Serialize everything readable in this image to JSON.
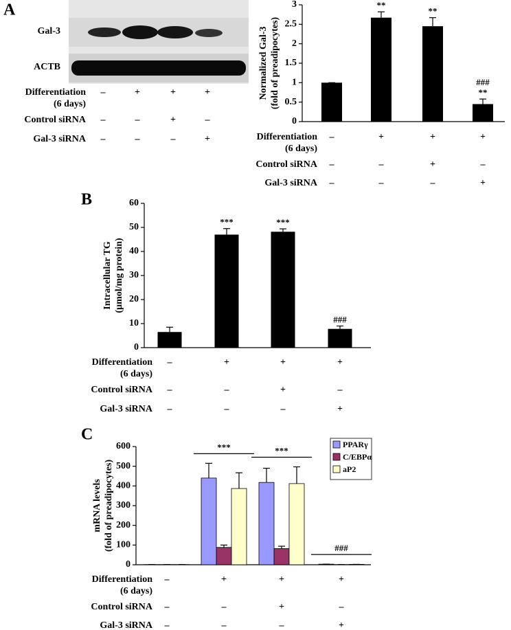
{
  "blot": {
    "panel": "A",
    "rows": [
      "Gal-3",
      "ACTB"
    ],
    "conditions": [
      {
        "label": [
          "Differentiation",
          "(6 days)"
        ],
        "signs": [
          "–",
          "+",
          "+",
          "+"
        ]
      },
      {
        "label": [
          "Control siRNA"
        ],
        "signs": [
          "–",
          "–",
          "+",
          "–"
        ]
      },
      {
        "label": [
          "Gal-3 siRNA"
        ],
        "signs": [
          "–",
          "–",
          "–",
          "+"
        ]
      }
    ]
  },
  "chart_data": [
    {
      "type": "bar",
      "panel": "",
      "y_label": [
        "Normalized Gal-3",
        "(fold of preadipocytes)"
      ],
      "categories": [
        null,
        null,
        null,
        null
      ],
      "values": [
        1,
        2.67,
        2.45,
        0.45
      ],
      "errors": [
        0,
        0.15,
        0.22,
        0.13
      ],
      "color": "#000000",
      "ylim": [
        0,
        3
      ],
      "yticks": [
        0,
        0.5,
        1,
        1.5,
        2,
        2.5,
        3
      ],
      "annotations": [
        {
          "index": 1,
          "text": [
            "**"
          ]
        },
        {
          "index": 2,
          "text": [
            "**"
          ]
        },
        {
          "index": 3,
          "text": [
            "###",
            "**"
          ]
        }
      ],
      "conditions": [
        {
          "label": [
            "Differentiation",
            "(6 days)"
          ],
          "signs": [
            "–",
            "+",
            "+",
            "+"
          ]
        },
        {
          "label": [
            "Control siRNA"
          ],
          "signs": [
            "–",
            "–",
            "+",
            "–"
          ]
        },
        {
          "label": [
            "Gal-3 siRNA"
          ],
          "signs": [
            "–",
            "–",
            "–",
            "+"
          ]
        }
      ]
    },
    {
      "type": "bar",
      "panel": "B",
      "y_label": [
        "Intracellular TG",
        "(µmol/mg protein)"
      ],
      "categories": [
        null,
        null,
        null,
        null
      ],
      "values": [
        6.5,
        47,
        48.2,
        7.8
      ],
      "errors": [
        2,
        2.5,
        1.2,
        1.2
      ],
      "color": "#000000",
      "ylim": [
        0,
        60
      ],
      "yticks": [
        0,
        10,
        20,
        30,
        40,
        50,
        60
      ],
      "annotations": [
        {
          "index": 1,
          "text": [
            "***"
          ]
        },
        {
          "index": 2,
          "text": [
            "***"
          ]
        },
        {
          "index": 3,
          "text": [
            "###"
          ]
        }
      ],
      "conditions": [
        {
          "label": [
            "Differentiation",
            "(6 days)"
          ],
          "signs": [
            "–",
            "+",
            "+",
            "+"
          ]
        },
        {
          "label": [
            "Control siRNA"
          ],
          "signs": [
            "–",
            "–",
            "+",
            "–"
          ]
        },
        {
          "label": [
            "Gal-3 siRNA"
          ],
          "signs": [
            "–",
            "–",
            "–",
            "+"
          ]
        }
      ]
    },
    {
      "type": "grouped_bar",
      "panel": "C",
      "y_label": [
        "mRNA levels",
        "(fold of preadipocytes)"
      ],
      "categories": [
        null,
        null,
        null,
        null
      ],
      "series": [
        {
          "name": "PPARγ",
          "color": "#9999ff",
          "values": [
            1,
            440,
            418,
            3
          ],
          "errors": [
            0,
            75,
            72,
            0
          ]
        },
        {
          "name": "C/EBPα",
          "color": "#993366",
          "values": [
            1,
            88,
            82,
            1
          ],
          "errors": [
            0,
            12,
            12,
            0
          ]
        },
        {
          "name": "aP2",
          "color": "#ffffcc",
          "values": [
            1,
            387,
            412,
            2
          ],
          "errors": [
            0,
            80,
            85,
            0
          ]
        }
      ],
      "ylim": [
        0,
        600
      ],
      "yticks": [
        0,
        100,
        200,
        300,
        400,
        500,
        600
      ],
      "legend": "upper right",
      "annotations": [
        {
          "index": 1,
          "text": [
            "***"
          ]
        },
        {
          "index": 2,
          "text": [
            "***"
          ]
        },
        {
          "index": 3,
          "text": [
            "###"
          ]
        }
      ],
      "conditions": [
        {
          "label": [
            "Differentiation",
            "(6 days)"
          ],
          "signs": [
            "–",
            "+",
            "+",
            "+"
          ]
        },
        {
          "label": [
            "Control siRNA"
          ],
          "signs": [
            "–",
            "–",
            "+",
            "–"
          ]
        },
        {
          "label": [
            "Gal-3 siRNA"
          ],
          "signs": [
            "–",
            "–",
            "–",
            "+"
          ]
        }
      ]
    }
  ]
}
